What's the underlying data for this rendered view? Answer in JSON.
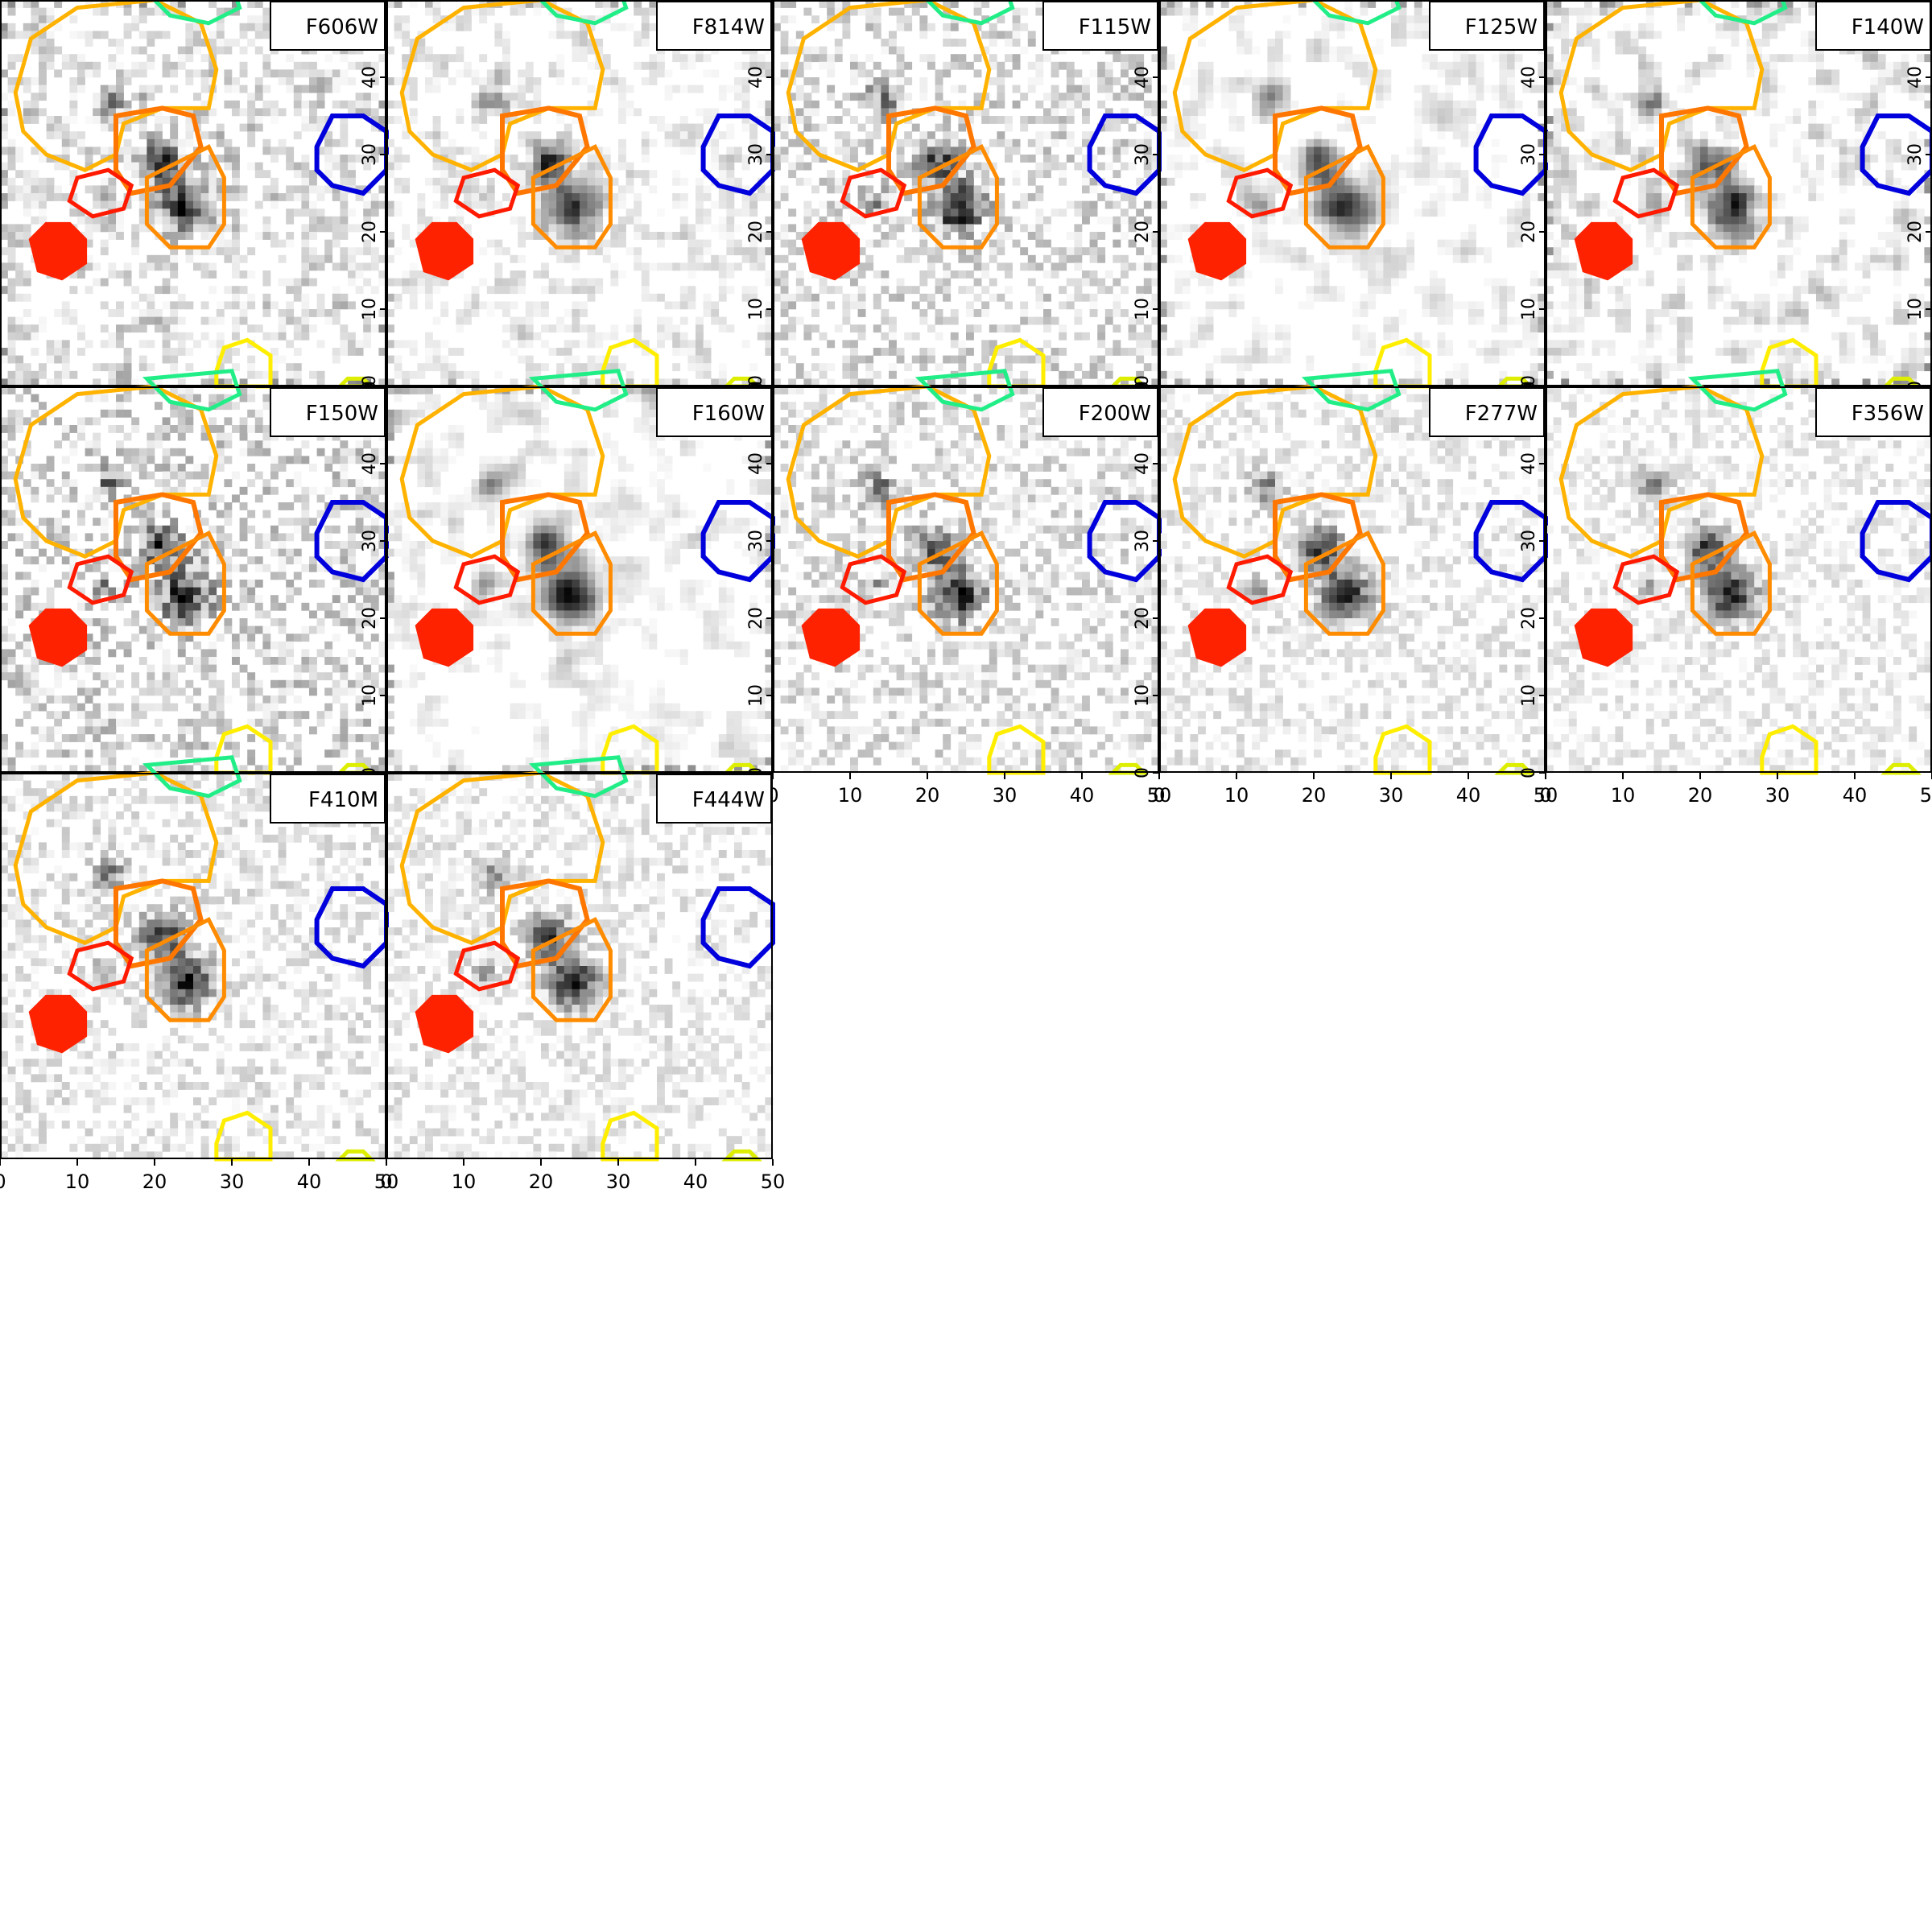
{
  "figure": {
    "background": "#ffffff",
    "axis_ticks": [
      "0",
      "10",
      "20",
      "30",
      "40",
      "50"
    ],
    "axis_range": [
      0,
      50
    ],
    "panels": [
      {
        "filter": "F606W",
        "noise": 0.6,
        "blur": 0.35,
        "row": 0,
        "col": 0,
        "left_ticks": false,
        "bottom_ticks": false,
        "right_ticks": true
      },
      {
        "filter": "F814W",
        "noise": 0.45,
        "blur": 0.45,
        "row": 0,
        "col": 1,
        "left_ticks": false,
        "bottom_ticks": false,
        "right_ticks": true
      },
      {
        "filter": "F115W",
        "noise": 0.4,
        "blur": 0.0,
        "row": 0,
        "col": 2,
        "left_ticks": false,
        "bottom_ticks": false,
        "right_ticks": true
      },
      {
        "filter": "F125W",
        "noise": 0.55,
        "blur": 0.8,
        "row": 0,
        "col": 3,
        "left_ticks": false,
        "bottom_ticks": false,
        "right_ticks": true
      },
      {
        "filter": "F140W",
        "noise": 0.6,
        "blur": 0.6,
        "row": 0,
        "col": 4,
        "left_ticks": false,
        "bottom_ticks": false,
        "right_ticks": true
      },
      {
        "filter": "F150W",
        "noise": 0.45,
        "blur": 0.0,
        "row": 1,
        "col": 0,
        "left_ticks": false,
        "bottom_ticks": false,
        "right_ticks": true
      },
      {
        "filter": "F160W",
        "noise": 0.55,
        "blur": 0.85,
        "row": 1,
        "col": 1,
        "left_ticks": false,
        "bottom_ticks": false,
        "right_ticks": true
      },
      {
        "filter": "F200W",
        "noise": 0.35,
        "blur": 0.0,
        "row": 1,
        "col": 2,
        "left_ticks": false,
        "bottom_ticks": true,
        "right_ticks": true
      },
      {
        "filter": "F277W",
        "noise": 0.25,
        "blur": 0.0,
        "row": 1,
        "col": 3,
        "left_ticks": false,
        "bottom_ticks": true,
        "right_ticks": true
      },
      {
        "filter": "F356W",
        "noise": 0.22,
        "blur": 0.0,
        "row": 1,
        "col": 4,
        "left_ticks": false,
        "bottom_ticks": true,
        "right_ticks": false
      },
      {
        "filter": "F410M",
        "noise": 0.28,
        "blur": 0.0,
        "row": 2,
        "col": 0,
        "left_ticks": false,
        "bottom_ticks": true,
        "right_ticks": false
      },
      {
        "filter": "F444W",
        "noise": 0.25,
        "blur": 0.0,
        "row": 2,
        "col": 1,
        "left_ticks": false,
        "bottom_ticks": true,
        "right_ticks": false
      }
    ],
    "sources": [
      {
        "name": "orange-large-region",
        "color": "#ffb300"
      },
      {
        "name": "green-region",
        "color": "#22ee88"
      },
      {
        "name": "orange-upper-region",
        "color": "#ff7700"
      },
      {
        "name": "orange-lower-region",
        "color": "#ff8c00"
      },
      {
        "name": "red-small-region",
        "color": "#ff1a00"
      },
      {
        "name": "red-filled-region",
        "color": "#ff2200"
      },
      {
        "name": "blue-region",
        "color": "#0000dd"
      },
      {
        "name": "yellow-region",
        "color": "#ffee00"
      },
      {
        "name": "yellowgreen-region",
        "color": "#ddee00"
      }
    ]
  }
}
